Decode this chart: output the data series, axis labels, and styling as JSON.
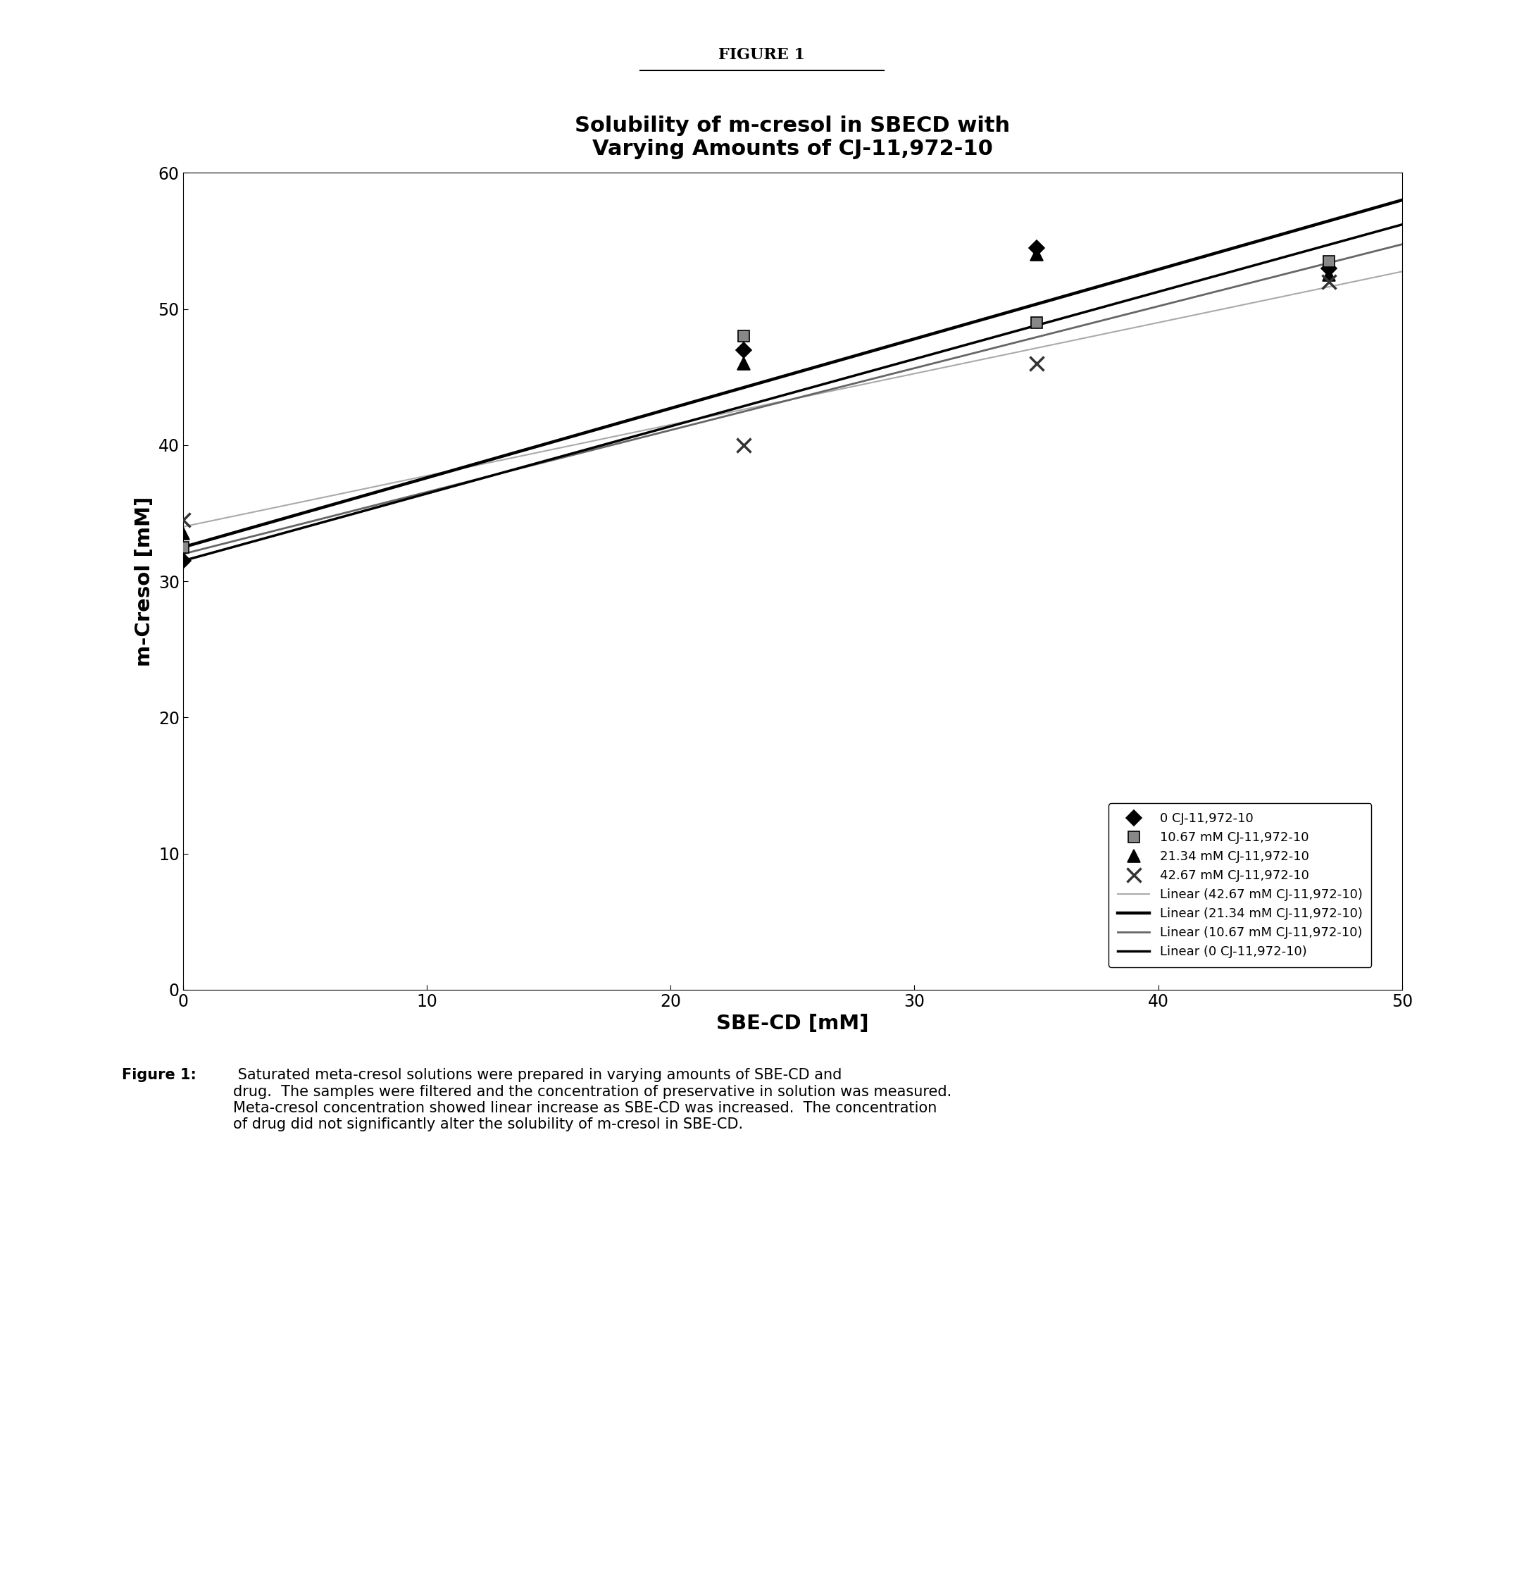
{
  "figure_label": "FIGURE 1",
  "title": "Solubility of m-cresol in SBECD with\nVarying Amounts of CJ-11,972-10",
  "xlabel": "SBE-CD [mM]",
  "ylabel": "m-Cresol [mM]",
  "xlim": [
    0,
    50
  ],
  "ylim": [
    0,
    60
  ],
  "xticks": [
    0,
    10,
    20,
    30,
    40,
    50
  ],
  "yticks": [
    0,
    10,
    20,
    30,
    40,
    50,
    60
  ],
  "series": [
    {
      "label": "0 CJ-11,972-10",
      "x": [
        0,
        23,
        35,
        47
      ],
      "y": [
        31.5,
        47.0,
        54.5,
        53.0
      ],
      "marker": "D",
      "markersize": 11,
      "markerfacecolor": "#000000",
      "markeredgecolor": "#000000",
      "line_slope": 0.494,
      "line_intercept": 31.5,
      "line_color": "#000000",
      "line_width": 2.5
    },
    {
      "label": "10.67 mM CJ-11,972-10",
      "x": [
        0,
        23,
        35,
        47
      ],
      "y": [
        32.5,
        48.0,
        49.0,
        53.5
      ],
      "marker": "s",
      "markersize": 12,
      "markerfacecolor": "#888888",
      "markeredgecolor": "#000000",
      "line_slope": 0.455,
      "line_intercept": 32.0,
      "line_color": "#666666",
      "line_width": 2.0
    },
    {
      "label": "21.34 mM CJ-11,972-10",
      "x": [
        0,
        23,
        35,
        47
      ],
      "y": [
        33.5,
        46.0,
        54.0,
        52.5
      ],
      "marker": "^",
      "markersize": 13,
      "markerfacecolor": "#000000",
      "markeredgecolor": "#000000",
      "line_slope": 0.51,
      "line_intercept": 32.5,
      "line_color": "#000000",
      "line_width": 3.2
    },
    {
      "label": "42.67 mM CJ-11,972-10",
      "x": [
        0,
        23,
        35,
        47
      ],
      "y": [
        34.5,
        40.0,
        46.0,
        52.0
      ],
      "marker": "x",
      "markersize": 14,
      "markerfacecolor": "#333333",
      "markeredgecolor": "#333333",
      "line_slope": 0.375,
      "line_intercept": 34.0,
      "line_color": "#aaaaaa",
      "line_width": 1.5
    }
  ],
  "line_legend_labels": [
    "Linear (42.67 mM CJ-11,972-10)",
    "Linear (21.34 mM CJ-11,972-10)",
    "Linear (10.67 mM CJ-11,972-10)",
    "Linear (0 CJ-11,972-10)"
  ],
  "line_legend_order": [
    3,
    2,
    1,
    0
  ],
  "background_color": "#ffffff",
  "title_fontsize": 22,
  "label_fontsize": 21,
  "tick_fontsize": 17,
  "legend_fontsize": 13,
  "fig_label_fontsize": 16,
  "caption_fontsize": 15,
  "caption_bold": "Figure 1:",
  "caption_text": " Saturated meta-cresol solutions were prepared in varying amounts of SBE-CD and\ndrug.  The samples were filtered and the concentration of preservative in solution was measured.\nMeta-cresol concentration showed linear increase as SBE-CD was increased.  The concentration\nof drug did not significantly alter the solubility of m-cresol in SBE-CD."
}
